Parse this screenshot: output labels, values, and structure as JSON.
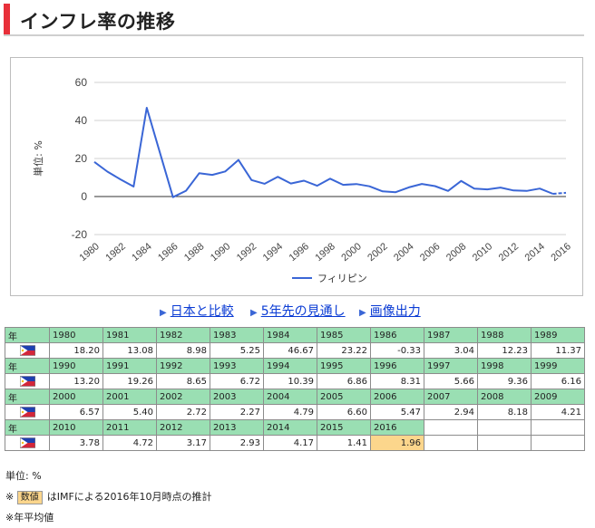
{
  "header": {
    "title": "インフレ率の推移"
  },
  "chart_data": {
    "type": "line",
    "ylabel": "単位: %",
    "ylim": [
      -20,
      60
    ],
    "yticks": [
      -20,
      0,
      20,
      40,
      60
    ],
    "x": [
      1980,
      1981,
      1982,
      1983,
      1984,
      1985,
      1986,
      1987,
      1988,
      1989,
      1990,
      1991,
      1992,
      1993,
      1994,
      1995,
      1996,
      1997,
      1998,
      1999,
      2000,
      2001,
      2002,
      2003,
      2004,
      2005,
      2006,
      2007,
      2008,
      2009,
      2010,
      2011,
      2012,
      2013,
      2014,
      2015,
      2016
    ],
    "xtick_labels": [
      "1980",
      "1982",
      "1984",
      "1986",
      "1988",
      "1990",
      "1992",
      "1994",
      "1996",
      "1998",
      "2000",
      "2002",
      "2004",
      "2006",
      "2008",
      "2010",
      "2012",
      "2014",
      "2016"
    ],
    "grid": true,
    "legend_position": "bottom",
    "series": [
      {
        "name": "フィリピン",
        "color": "#3a66d6",
        "values": [
          18.2,
          13.08,
          8.98,
          5.25,
          46.67,
          23.22,
          -0.33,
          3.04,
          12.23,
          11.37,
          13.2,
          19.26,
          8.65,
          6.72,
          10.39,
          6.86,
          8.31,
          5.66,
          9.36,
          6.16,
          6.57,
          5.4,
          2.72,
          2.27,
          4.79,
          6.6,
          5.47,
          2.94,
          8.18,
          4.21,
          3.78,
          4.72,
          3.17,
          2.93,
          4.17,
          1.41,
          1.96
        ],
        "estimated_from": 2016
      }
    ]
  },
  "links": [
    {
      "label": "日本と比較"
    },
    {
      "label": "5年先の見通し"
    },
    {
      "label": "画像出力"
    }
  ],
  "table": {
    "year_header": "年",
    "rows": [
      {
        "years": [
          "1980",
          "1981",
          "1982",
          "1983",
          "1984",
          "1985",
          "1986",
          "1987",
          "1988",
          "1989"
        ],
        "values": [
          "18.20",
          "13.08",
          "8.98",
          "5.25",
          "46.67",
          "23.22",
          "-0.33",
          "3.04",
          "12.23",
          "11.37"
        ]
      },
      {
        "years": [
          "1990",
          "1991",
          "1992",
          "1993",
          "1994",
          "1995",
          "1996",
          "1997",
          "1998",
          "1999"
        ],
        "values": [
          "13.20",
          "19.26",
          "8.65",
          "6.72",
          "10.39",
          "6.86",
          "8.31",
          "5.66",
          "9.36",
          "6.16"
        ]
      },
      {
        "years": [
          "2000",
          "2001",
          "2002",
          "2003",
          "2004",
          "2005",
          "2006",
          "2007",
          "2008",
          "2009"
        ],
        "values": [
          "6.57",
          "5.40",
          "2.72",
          "2.27",
          "4.79",
          "6.60",
          "5.47",
          "2.94",
          "8.18",
          "4.21"
        ]
      },
      {
        "years": [
          "2010",
          "2011",
          "2012",
          "2013",
          "2014",
          "2015",
          "2016"
        ],
        "values": [
          "3.78",
          "4.72",
          "3.17",
          "2.93",
          "4.17",
          "1.41",
          "1.96"
        ]
      }
    ],
    "estimated_years": [
      "2016"
    ]
  },
  "notes": {
    "unit": "単位: %",
    "estimate_badge": "数値",
    "estimate_prefix": "※",
    "estimate_text": "はIMFによる2016年10月時点の推計",
    "average": "※年平均値"
  },
  "colors": {
    "accent": "#e8303a",
    "line": "#3a66d6",
    "header_cell": "#9adfb3",
    "estimate_cell": "#fcd68c",
    "link": "#0a3bd4"
  },
  "icons": {
    "country_flag": "philippines-flag-icon",
    "link_arrow": "triangle-right-icon"
  }
}
